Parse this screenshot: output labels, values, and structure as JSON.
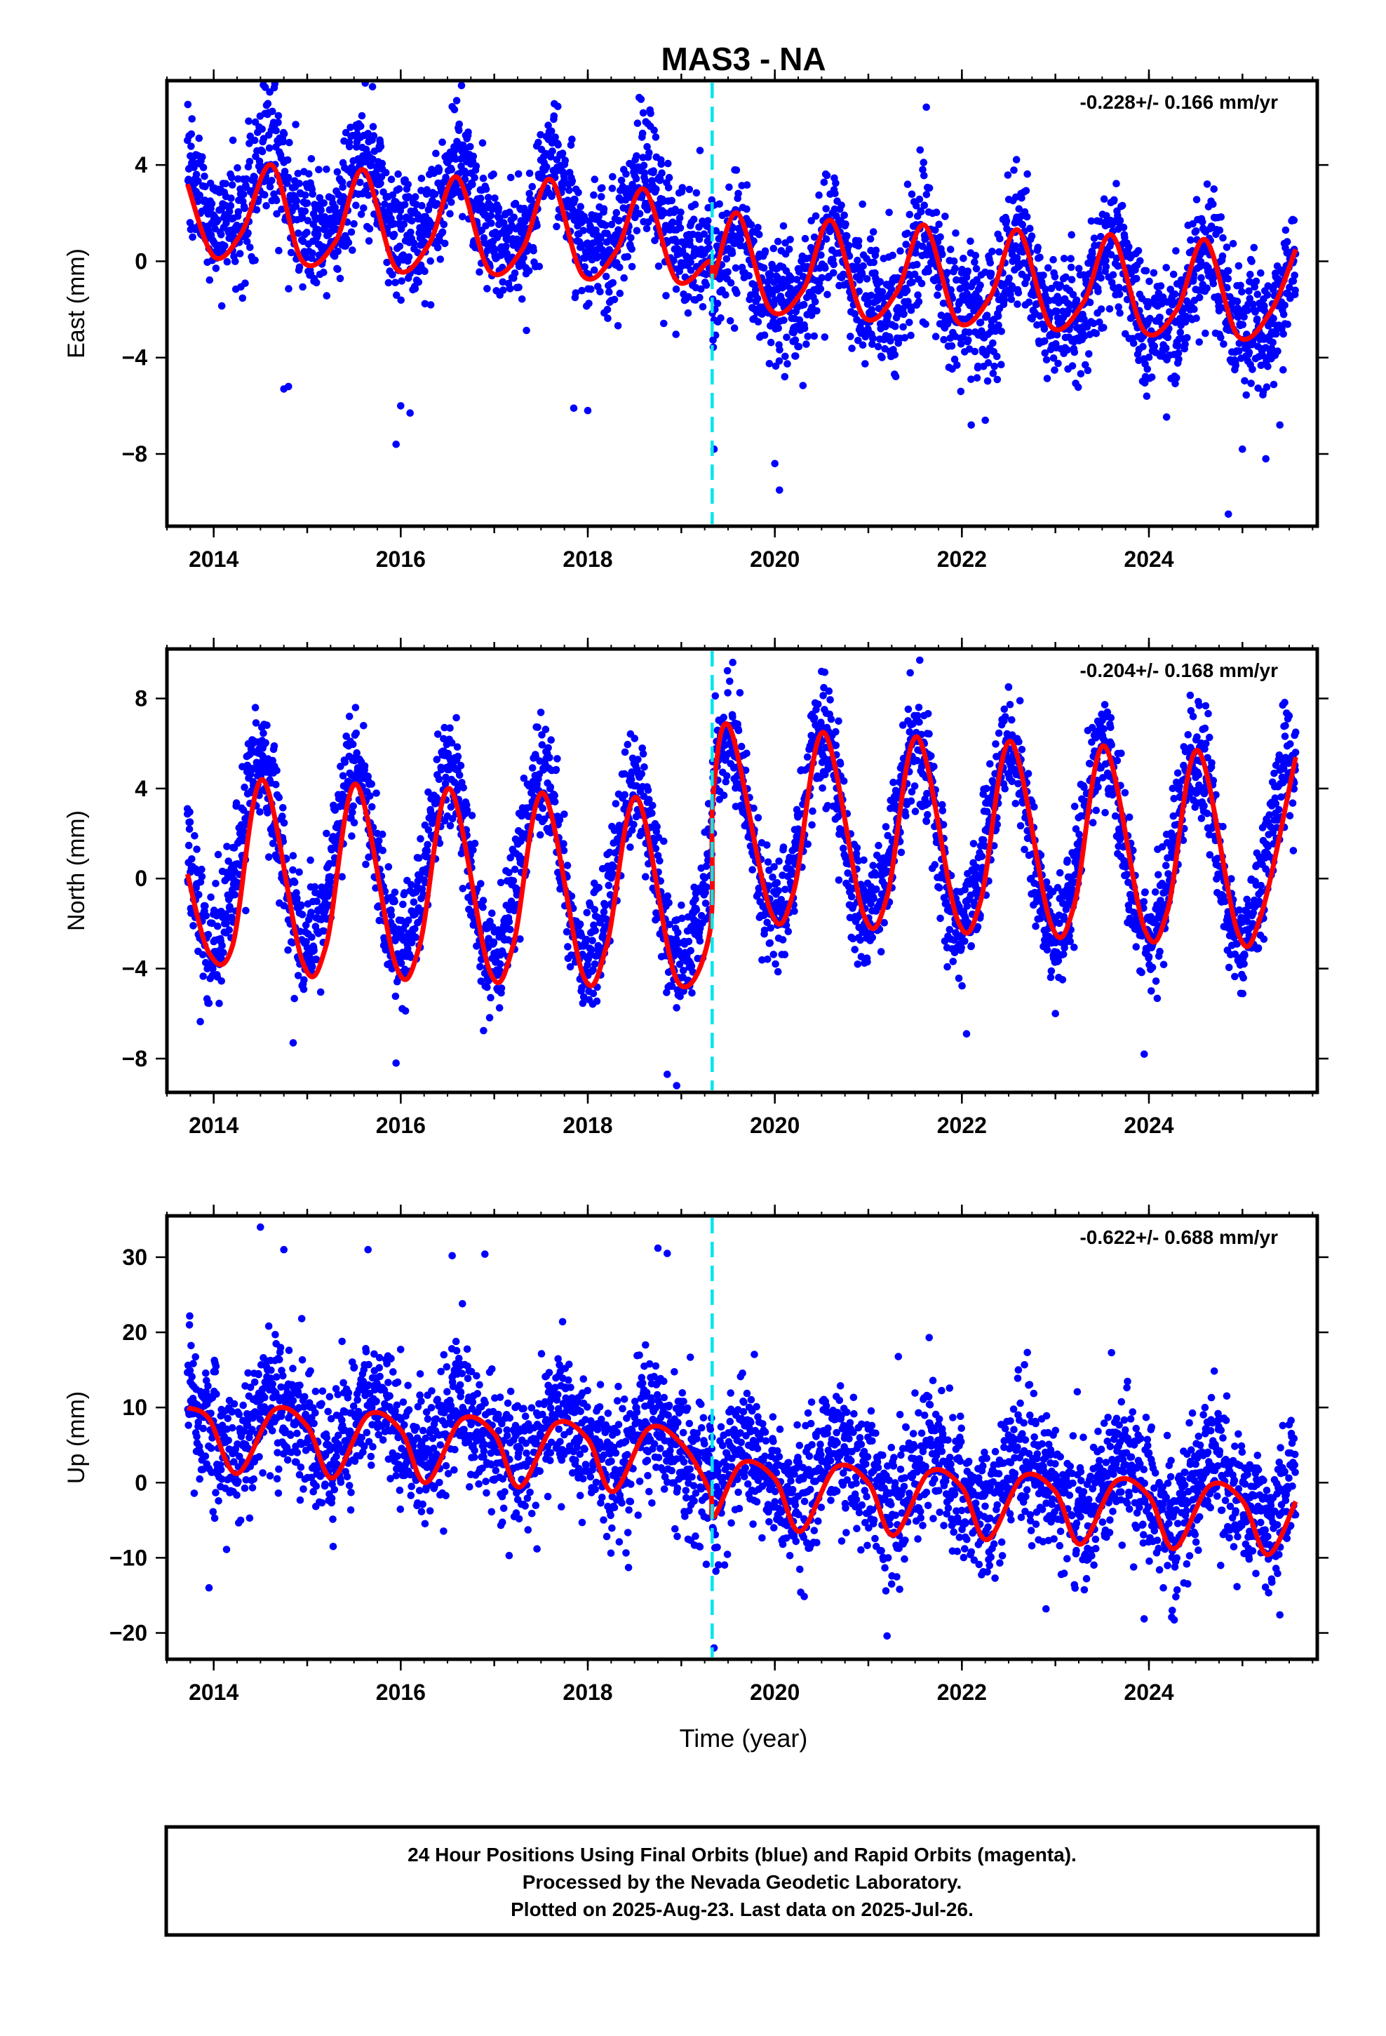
{
  "title": "MAS3 - NA",
  "x_axis_label": "Time (year)",
  "footer": {
    "line1": "24 Hour Positions Using Final Orbits (blue) and Rapid Orbits (magenta).",
    "line2": "Processed by the Nevada Geodetic Laboratory.",
    "line3": "Plotted on 2025-Aug-23. Last data on 2025-Jul-26."
  },
  "colors": {
    "points": "#0000ff",
    "fit": "#ff0000",
    "event_line": "#00e5ee",
    "frame": "#000000"
  },
  "chart_data": [
    {
      "type": "scatter",
      "name": "east",
      "ylabel": "East (mm)",
      "rate_text": "-0.228+/- 0.166 mm/yr",
      "xlim": [
        2013.5,
        2025.8
      ],
      "ylim": [
        -11,
        7.5
      ],
      "x_ticks": [
        2014,
        2016,
        2018,
        2020,
        2022,
        2024
      ],
      "y_ticks": [
        4,
        0,
        -4,
        -8
      ],
      "y_tick_labels": [
        "4",
        "0",
        "−4",
        "−8"
      ],
      "grid": false,
      "event_x": 2019.33,
      "start_year": 2013.72,
      "end_year": 2025.57,
      "model": {
        "offset_before": 1.6,
        "offset_after": -0.4,
        "trend": -0.228,
        "annual_amp": 1.6,
        "annual_peak": 0.62,
        "semi_amp": 0.45,
        "semi_peak": 0.1,
        "noise_sd": 1.3
      },
      "fit_points": [
        [
          2013.72,
          3.2
        ],
        [
          2014.0,
          0.2
        ],
        [
          2014.3,
          1.2
        ],
        [
          2014.62,
          4.0
        ],
        [
          2014.95,
          0.0
        ],
        [
          2015.3,
          0.8
        ],
        [
          2015.6,
          3.8
        ],
        [
          2015.95,
          -0.3
        ],
        [
          2016.3,
          0.7
        ],
        [
          2016.6,
          3.5
        ],
        [
          2016.95,
          -0.4
        ],
        [
          2017.3,
          0.5
        ],
        [
          2017.6,
          3.4
        ],
        [
          2017.95,
          -0.6
        ],
        [
          2018.3,
          0.4
        ],
        [
          2018.6,
          3.0
        ],
        [
          2018.95,
          -0.8
        ],
        [
          2019.3,
          0.0
        ],
        [
          2019.35,
          -0.6
        ],
        [
          2019.6,
          2.0
        ],
        [
          2019.95,
          -2.0
        ],
        [
          2020.3,
          -1.2
        ],
        [
          2020.6,
          1.7
        ],
        [
          2020.95,
          -2.3
        ],
        [
          2021.3,
          -1.3
        ],
        [
          2021.6,
          1.5
        ],
        [
          2021.95,
          -2.5
        ],
        [
          2022.3,
          -1.5
        ],
        [
          2022.6,
          1.3
        ],
        [
          2022.95,
          -2.7
        ],
        [
          2023.3,
          -1.7
        ],
        [
          2023.6,
          1.1
        ],
        [
          2023.95,
          -2.9
        ],
        [
          2024.3,
          -2.0
        ],
        [
          2024.6,
          0.9
        ],
        [
          2024.95,
          -3.1
        ],
        [
          2025.3,
          -2.1
        ],
        [
          2025.57,
          0.5
        ]
      ],
      "highlighted_points": [
        [
          2015.62,
          7.4
        ],
        [
          2016.65,
          7.3
        ],
        [
          2021.62,
          6.4
        ],
        [
          2018.55,
          6.8
        ],
        [
          2019.2,
          4.6
        ],
        [
          2020.0,
          -8.4
        ],
        [
          2020.05,
          -9.5
        ],
        [
          2024.85,
          -10.5
        ],
        [
          2015.95,
          -7.6
        ],
        [
          2019.35,
          -7.8
        ],
        [
          2014.8,
          -5.2
        ],
        [
          2014.75,
          -5.3
        ],
        [
          2016.1,
          -6.3
        ],
        [
          2016.0,
          -6.0
        ],
        [
          2018.0,
          -6.2
        ],
        [
          2017.85,
          -6.1
        ],
        [
          2025.0,
          -7.8
        ],
        [
          2025.4,
          -6.8
        ],
        [
          2025.25,
          -8.2
        ],
        [
          2022.1,
          -6.8
        ],
        [
          2022.25,
          -6.6
        ]
      ]
    },
    {
      "type": "scatter",
      "name": "north",
      "ylabel": "North (mm)",
      "rate_text": "-0.204+/- 0.168 mm/yr",
      "xlim": [
        2013.5,
        2025.8
      ],
      "ylim": [
        -9.5,
        10.2
      ],
      "x_ticks": [
        2014,
        2016,
        2018,
        2020,
        2022,
        2024
      ],
      "y_ticks": [
        8,
        4,
        0,
        -4,
        -8
      ],
      "y_tick_labels": [
        "8",
        "4",
        "0",
        "−4",
        "−8"
      ],
      "grid": false,
      "event_x": 2019.33,
      "start_year": 2013.72,
      "end_year": 2025.57,
      "model": {
        "offset_before": 0.0,
        "offset_after": 2.3,
        "trend": -0.204,
        "annual_amp": 4.0,
        "annual_peak": 0.5,
        "semi_amp": 0.3,
        "semi_peak": 0.05,
        "noise_sd": 1.2
      },
      "fit_points": [
        [
          2013.72,
          0.2
        ],
        [
          2013.95,
          -3.3
        ],
        [
          2014.2,
          -3.0
        ],
        [
          2014.52,
          4.4
        ],
        [
          2014.95,
          -3.7
        ],
        [
          2015.2,
          -3.0
        ],
        [
          2015.52,
          4.2
        ],
        [
          2015.95,
          -3.9
        ],
        [
          2016.2,
          -3.0
        ],
        [
          2016.52,
          4.0
        ],
        [
          2016.95,
          -4.1
        ],
        [
          2017.2,
          -3.0
        ],
        [
          2017.52,
          3.8
        ],
        [
          2017.95,
          -4.3
        ],
        [
          2018.2,
          -3.0
        ],
        [
          2018.52,
          3.6
        ],
        [
          2018.95,
          -4.5
        ],
        [
          2019.3,
          -2.5
        ],
        [
          2019.34,
          3.7
        ],
        [
          2019.52,
          6.7
        ],
        [
          2019.95,
          -1.4
        ],
        [
          2020.2,
          -0.6
        ],
        [
          2020.52,
          6.5
        ],
        [
          2020.95,
          -1.6
        ],
        [
          2021.2,
          -0.8
        ],
        [
          2021.52,
          6.3
        ],
        [
          2021.95,
          -1.8
        ],
        [
          2022.2,
          -1.0
        ],
        [
          2022.52,
          6.1
        ],
        [
          2022.95,
          -2.0
        ],
        [
          2023.2,
          -1.2
        ],
        [
          2023.52,
          5.9
        ],
        [
          2023.95,
          -2.2
        ],
        [
          2024.2,
          -1.4
        ],
        [
          2024.52,
          5.7
        ],
        [
          2024.95,
          -2.4
        ],
        [
          2025.2,
          -1.6
        ],
        [
          2025.57,
          5.4
        ]
      ],
      "highlighted_points": [
        [
          2019.55,
          9.6
        ],
        [
          2020.5,
          9.2
        ],
        [
          2021.55,
          9.7
        ],
        [
          2022.5,
          8.5
        ],
        [
          2018.95,
          -9.2
        ],
        [
          2018.85,
          -8.7
        ],
        [
          2023.95,
          -7.8
        ],
        [
          2013.72,
          3.1
        ],
        [
          2014.85,
          -7.3
        ],
        [
          2015.95,
          -8.2
        ],
        [
          2022.05,
          -6.9
        ],
        [
          2023.0,
          -6.0
        ],
        [
          2025.57,
          6.5
        ]
      ]
    },
    {
      "type": "scatter",
      "name": "up",
      "ylabel": "Up (mm)",
      "rate_text": "-0.622+/- 0.688 mm/yr",
      "xlim": [
        2013.5,
        2025.8
      ],
      "ylim": [
        -23.5,
        35.5
      ],
      "x_ticks": [
        2014,
        2016,
        2018,
        2020,
        2022,
        2024
      ],
      "y_ticks": [
        30,
        20,
        10,
        0,
        -10,
        -20
      ],
      "y_tick_labels": [
        "30",
        "20",
        "10",
        "0",
        "−10",
        "−20"
      ],
      "grid": false,
      "event_x": 2019.33,
      "start_year": 2013.72,
      "end_year": 2025.57,
      "model": {
        "offset_before": 5.0,
        "offset_after": 2.0,
        "trend": -0.622,
        "annual_amp": 3.8,
        "annual_peak": 0.7,
        "semi_amp": 1.0,
        "semi_peak": 0.1,
        "noise_sd": 4.5
      },
      "fit_points": [
        [
          2013.72,
          10.0
        ],
        [
          2013.95,
          8.5
        ],
        [
          2014.25,
          1.2
        ],
        [
          2014.65,
          9.7
        ],
        [
          2015.0,
          7.5
        ],
        [
          2015.27,
          0.6
        ],
        [
          2015.65,
          9.0
        ],
        [
          2016.0,
          7.0
        ],
        [
          2016.27,
          0.0
        ],
        [
          2016.65,
          8.4
        ],
        [
          2017.0,
          6.5
        ],
        [
          2017.27,
          -0.6
        ],
        [
          2017.65,
          7.8
        ],
        [
          2018.0,
          5.8
        ],
        [
          2018.27,
          -1.2
        ],
        [
          2018.65,
          7.2
        ],
        [
          2019.0,
          5.2
        ],
        [
          2019.3,
          -1.0
        ],
        [
          2019.35,
          -4.5
        ],
        [
          2019.65,
          2.6
        ],
        [
          2020.0,
          0.5
        ],
        [
          2020.27,
          -6.5
        ],
        [
          2020.65,
          2.0
        ],
        [
          2021.0,
          0.0
        ],
        [
          2021.27,
          -7.0
        ],
        [
          2021.65,
          1.4
        ],
        [
          2022.0,
          -0.6
        ],
        [
          2022.27,
          -7.6
        ],
        [
          2022.65,
          0.8
        ],
        [
          2023.0,
          -1.2
        ],
        [
          2023.27,
          -8.2
        ],
        [
          2023.65,
          0.2
        ],
        [
          2024.0,
          -1.8
        ],
        [
          2024.27,
          -8.8
        ],
        [
          2024.65,
          -0.4
        ],
        [
          2025.0,
          -2.4
        ],
        [
          2025.27,
          -9.6
        ],
        [
          2025.57,
          -2.5
        ]
      ],
      "highlighted_points": [
        [
          2014.5,
          34.0
        ],
        [
          2014.75,
          31.0
        ],
        [
          2015.65,
          31.0
        ],
        [
          2016.55,
          30.2
        ],
        [
          2016.9,
          30.4
        ],
        [
          2018.75,
          31.2
        ],
        [
          2018.85,
          30.5
        ],
        [
          2021.65,
          19.3
        ],
        [
          2023.6,
          17.3
        ],
        [
          2019.35,
          -22.0
        ],
        [
          2013.95,
          -14.0
        ],
        [
          2021.2,
          -20.4
        ],
        [
          2022.9,
          -16.8
        ],
        [
          2025.4,
          -17.6
        ],
        [
          2024.25,
          -17.0
        ]
      ]
    }
  ]
}
